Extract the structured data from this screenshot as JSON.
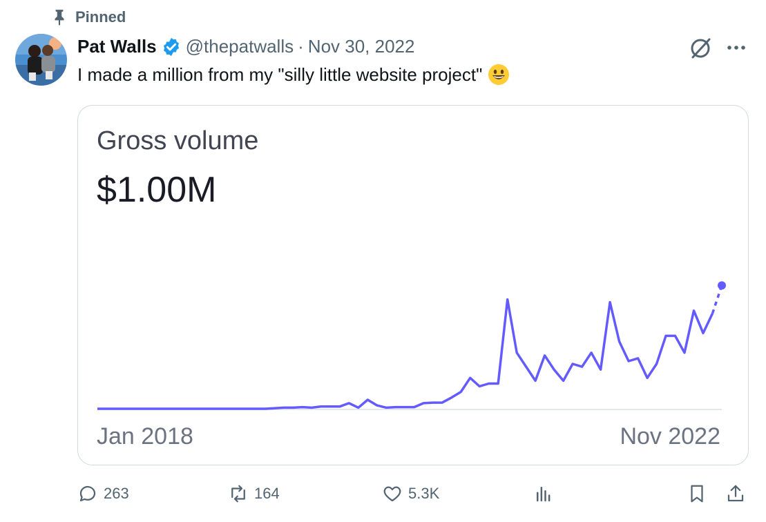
{
  "pinned_label": "Pinned",
  "author": {
    "name": "Pat Walls",
    "handle": "@thepatwalls",
    "separator": "·",
    "date": "Nov 30, 2022"
  },
  "tweet": {
    "text": "I made a million from my \"silly little website project\""
  },
  "chart_card": {
    "title": "Gross volume",
    "value": "$1.00M",
    "x_start": "Jan 2018",
    "x_end": "Nov 2022"
  },
  "chart_data": {
    "type": "line",
    "title": "Gross volume",
    "x_range": [
      "Jan 2018",
      "Nov 2022"
    ],
    "line_color": "#635bff",
    "values": [
      0,
      0,
      0,
      0,
      0,
      0,
      0,
      0,
      0,
      0,
      0,
      0,
      0,
      0,
      0,
      0,
      0,
      0,
      0,
      0.1,
      0.2,
      0.2,
      0.3,
      0.2,
      0.4,
      0.4,
      0.4,
      1.0,
      0.2,
      1.6,
      0.6,
      0.2,
      0.3,
      0.3,
      0.3,
      1.0,
      1.1,
      1.1,
      2.0,
      3.0,
      5.5,
      4.0,
      4.5,
      4.5,
      19.5,
      10.0,
      7.5,
      5.0,
      9.5,
      7.0,
      5.0,
      8.0,
      7.5,
      10.0,
      7.0,
      19.0,
      12.0,
      8.5,
      9.0,
      5.5,
      8.0,
      13.0,
      13.0,
      10.0,
      17.5,
      13.5,
      17.0
    ],
    "projected_values": [
      17.0,
      22.0
    ],
    "ylim": [
      0,
      25
    ]
  },
  "actions": {
    "replies": "263",
    "reposts": "164",
    "likes": "5.3K",
    "views": ""
  },
  "colors": {
    "accent": "#1d9bf0",
    "muted": "#536471",
    "chart_line": "#635bff"
  }
}
